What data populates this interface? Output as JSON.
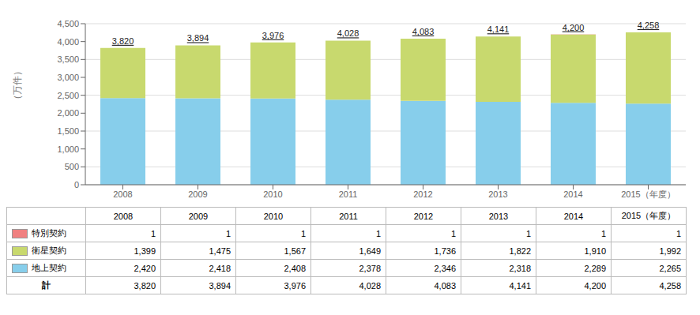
{
  "chart_data": {
    "type": "bar",
    "stacked": true,
    "grid": true,
    "ylabel": "（万件）",
    "categories": [
      "2008",
      "2009",
      "2010",
      "2011",
      "2012",
      "2013",
      "2014",
      "2015（年度）"
    ],
    "series": [
      {
        "name": "特別契約",
        "color": "#f08080",
        "values": [
          1,
          1,
          1,
          1,
          1,
          1,
          1,
          1
        ],
        "value_labels": [
          "1",
          "1",
          "1",
          "1",
          "1",
          "1",
          "1",
          "1"
        ]
      },
      {
        "name": "衛星契約",
        "color": "#c8d96e",
        "values": [
          1399,
          1475,
          1567,
          1649,
          1736,
          1822,
          1910,
          1992
        ],
        "value_labels": [
          "1,399",
          "1,475",
          "1,567",
          "1,649",
          "1,736",
          "1,822",
          "1,910",
          "1,992"
        ]
      },
      {
        "name": "地上契約",
        "color": "#87ceeb",
        "values": [
          2420,
          2418,
          2408,
          2378,
          2346,
          2318,
          2289,
          2265
        ],
        "value_labels": [
          "2,420",
          "2,418",
          "2,408",
          "2,378",
          "2,346",
          "2,318",
          "2,289",
          "2,265"
        ]
      }
    ],
    "total": {
      "name": "計",
      "values": [
        3820,
        3894,
        3976,
        4028,
        4083,
        4141,
        4200,
        4258
      ],
      "value_labels": [
        "3,820",
        "3,894",
        "3,976",
        "4,028",
        "4,083",
        "4,141",
        "4,200",
        "4,258"
      ]
    },
    "ylim": [
      0,
      4500
    ],
    "yticks": [
      0,
      500,
      {
        "value": 1000,
        "label": "1,000"
      },
      {
        "value": 1500,
        "label": "1,500"
      },
      {
        "value": 2000,
        "label": "2,000"
      },
      {
        "value": 2500,
        "label": "2,500"
      },
      {
        "value": 3000,
        "label": "3,000"
      },
      {
        "value": 3500,
        "label": "3,500"
      },
      {
        "value": 4000,
        "label": "4,000"
      },
      {
        "value": 4500,
        "label": "4,500"
      }
    ]
  }
}
